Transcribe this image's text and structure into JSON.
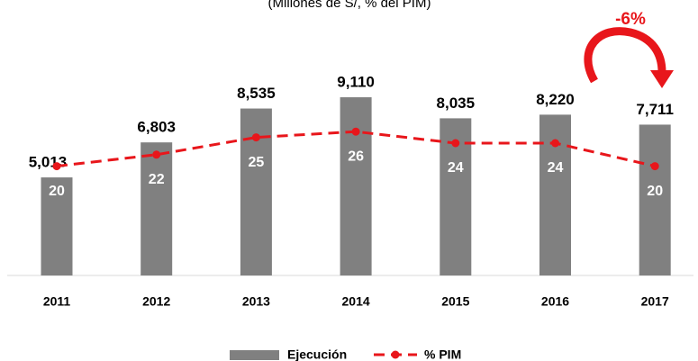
{
  "chart_data": {
    "type": "bar_line",
    "subtitle": "(Millones de S/, % del PIM)",
    "annotation": "-6%",
    "categories": [
      "2011",
      "2012",
      "2013",
      "2014",
      "2015",
      "2016",
      "2017"
    ],
    "series": [
      {
        "name": "Ejecución",
        "type": "bar",
        "color": "#808080",
        "values": [
          5013,
          6803,
          8535,
          9110,
          8035,
          8220,
          7711
        ],
        "value_labels": [
          "5,013",
          "6,803",
          "8,535",
          "9,110",
          "8,035",
          "8,220",
          "7,711"
        ]
      },
      {
        "name": "% PIM",
        "type": "line",
        "axis": "y2",
        "color": "#e8161b",
        "values": [
          20,
          22,
          25,
          26,
          24,
          24,
          20
        ]
      }
    ],
    "ylim": [
      0,
      10000
    ],
    "y2lim": [
      1,
      35
    ]
  }
}
